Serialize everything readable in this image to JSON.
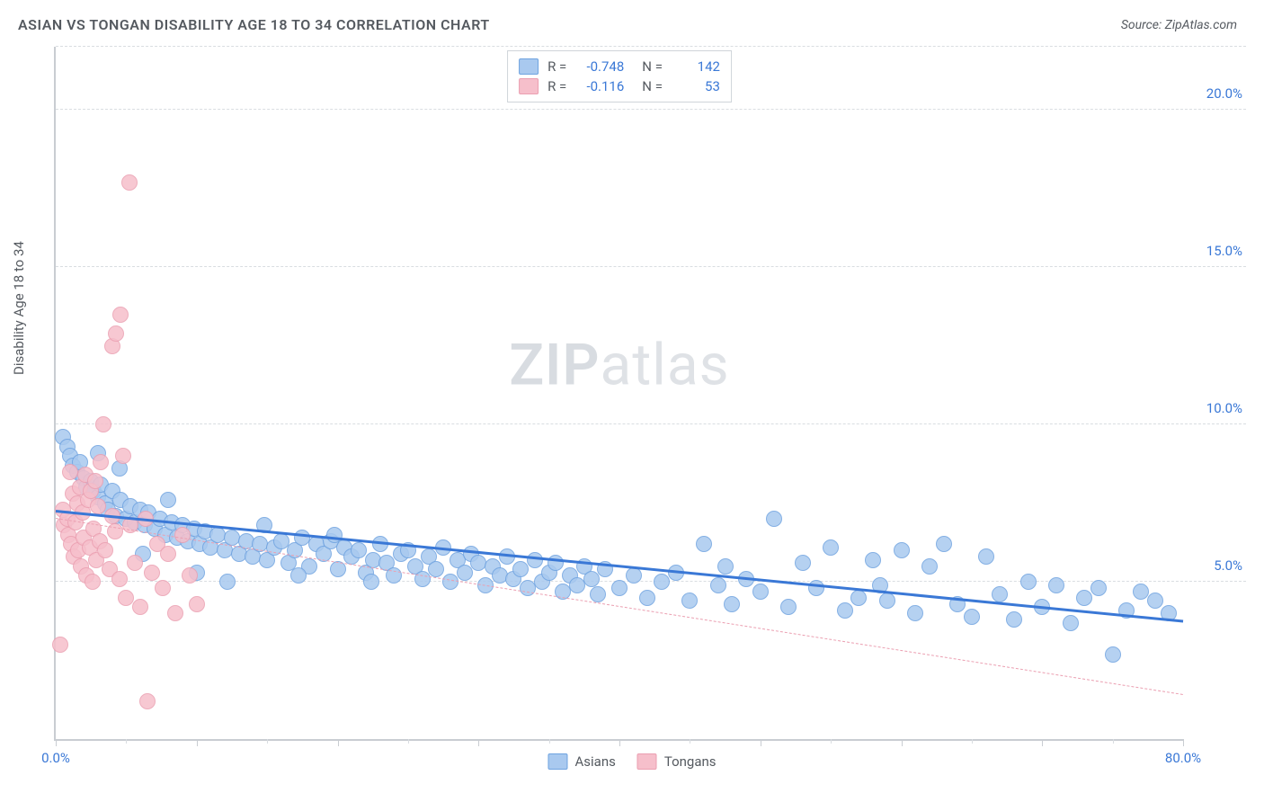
{
  "title": "ASIAN VS TONGAN DISABILITY AGE 18 TO 34 CORRELATION CHART",
  "source": "Source: ZipAtlas.com",
  "y_axis_label": "Disability Age 18 to 34",
  "watermark": {
    "bold": "ZIP",
    "rest": "atlas"
  },
  "chart": {
    "type": "scatter",
    "background_color": "#ffffff",
    "grid_color": "#d9dde1",
    "axis_color": "#c9cdd2",
    "xlim": [
      0,
      80
    ],
    "ylim": [
      0,
      22
    ],
    "y_gridlines": [
      5,
      10,
      15,
      20
    ],
    "y_tick_labels": [
      "5.0%",
      "10.0%",
      "15.0%",
      "20.0%"
    ],
    "y_tick_color": "#3a78d6",
    "x_ticks_major": [
      0,
      10,
      20,
      30,
      40,
      50,
      60,
      70,
      80
    ],
    "x_ticks_minor": [
      5,
      15,
      25,
      35,
      45,
      55,
      65,
      75
    ],
    "x_labels": [
      {
        "x": 0,
        "text": "0.0%",
        "color": "#3a78d6"
      },
      {
        "x": 80,
        "text": "80.0%",
        "color": "#3a78d6"
      }
    ],
    "point_radius": 9,
    "point_opacity_fill": 0.35,
    "series": [
      {
        "name": "Asians",
        "color_fill": "#a9c9ef",
        "color_stroke": "#6fa3e0",
        "R": "-0.748",
        "N": "142",
        "stat_color": "#3a78d6",
        "trend": {
          "x1": 0,
          "y1": 7.2,
          "x2": 80,
          "y2": 3.7,
          "style": "solid",
          "color": "#3a78d6",
          "extend_dash": false
        },
        "points": [
          [
            0.5,
            9.6
          ],
          [
            0.8,
            9.3
          ],
          [
            1.0,
            9.0
          ],
          [
            1.2,
            8.7
          ],
          [
            1.5,
            8.5
          ],
          [
            1.7,
            8.8
          ],
          [
            2.0,
            8.3
          ],
          [
            2.2,
            8.0
          ],
          [
            2.5,
            8.2
          ],
          [
            2.7,
            7.9
          ],
          [
            3.0,
            7.7
          ],
          [
            3.2,
            8.1
          ],
          [
            3.5,
            7.5
          ],
          [
            3.7,
            7.3
          ],
          [
            4.0,
            7.9
          ],
          [
            4.3,
            7.1
          ],
          [
            4.6,
            7.6
          ],
          [
            5.0,
            7.0
          ],
          [
            5.3,
            7.4
          ],
          [
            5.6,
            6.9
          ],
          [
            6.0,
            7.3
          ],
          [
            6.3,
            6.8
          ],
          [
            6.6,
            7.2
          ],
          [
            7.0,
            6.7
          ],
          [
            7.4,
            7.0
          ],
          [
            7.8,
            6.5
          ],
          [
            8.2,
            6.9
          ],
          [
            8.6,
            6.4
          ],
          [
            9.0,
            6.8
          ],
          [
            9.4,
            6.3
          ],
          [
            9.8,
            6.7
          ],
          [
            10.2,
            6.2
          ],
          [
            10.6,
            6.6
          ],
          [
            11.0,
            6.1
          ],
          [
            11.5,
            6.5
          ],
          [
            12.0,
            6.0
          ],
          [
            12.5,
            6.4
          ],
          [
            13.0,
            5.9
          ],
          [
            13.5,
            6.3
          ],
          [
            14.0,
            5.8
          ],
          [
            14.5,
            6.2
          ],
          [
            15.0,
            5.7
          ],
          [
            15.5,
            6.1
          ],
          [
            16.0,
            6.3
          ],
          [
            16.5,
            5.6
          ],
          [
            17.0,
            6.0
          ],
          [
            17.5,
            6.4
          ],
          [
            18.0,
            5.5
          ],
          [
            18.5,
            6.2
          ],
          [
            19.0,
            5.9
          ],
          [
            19.5,
            6.3
          ],
          [
            20.0,
            5.4
          ],
          [
            20.5,
            6.1
          ],
          [
            21.0,
            5.8
          ],
          [
            21.5,
            6.0
          ],
          [
            22.0,
            5.3
          ],
          [
            22.5,
            5.7
          ],
          [
            23.0,
            6.2
          ],
          [
            23.5,
            5.6
          ],
          [
            24.0,
            5.2
          ],
          [
            24.5,
            5.9
          ],
          [
            25.0,
            6.0
          ],
          [
            25.5,
            5.5
          ],
          [
            26.0,
            5.1
          ],
          [
            26.5,
            5.8
          ],
          [
            27.0,
            5.4
          ],
          [
            27.5,
            6.1
          ],
          [
            28.0,
            5.0
          ],
          [
            28.5,
            5.7
          ],
          [
            29.0,
            5.3
          ],
          [
            29.5,
            5.9
          ],
          [
            30.0,
            5.6
          ],
          [
            30.5,
            4.9
          ],
          [
            31.0,
            5.5
          ],
          [
            31.5,
            5.2
          ],
          [
            32.0,
            5.8
          ],
          [
            32.5,
            5.1
          ],
          [
            33.0,
            5.4
          ],
          [
            33.5,
            4.8
          ],
          [
            34.0,
            5.7
          ],
          [
            34.5,
            5.0
          ],
          [
            35.0,
            5.3
          ],
          [
            35.5,
            5.6
          ],
          [
            36.0,
            4.7
          ],
          [
            36.5,
            5.2
          ],
          [
            37.0,
            4.9
          ],
          [
            37.5,
            5.5
          ],
          [
            38.0,
            5.1
          ],
          [
            38.5,
            4.6
          ],
          [
            39.0,
            5.4
          ],
          [
            40.0,
            4.8
          ],
          [
            41.0,
            5.2
          ],
          [
            42.0,
            4.5
          ],
          [
            43.0,
            5.0
          ],
          [
            44.0,
            5.3
          ],
          [
            45.0,
            4.4
          ],
          [
            46.0,
            6.2
          ],
          [
            47.0,
            4.9
          ],
          [
            48.0,
            4.3
          ],
          [
            49.0,
            5.1
          ],
          [
            50.0,
            4.7
          ],
          [
            51.0,
            7.0
          ],
          [
            52.0,
            4.2
          ],
          [
            53.0,
            5.6
          ],
          [
            54.0,
            4.8
          ],
          [
            55.0,
            6.1
          ],
          [
            56.0,
            4.1
          ],
          [
            57.0,
            4.5
          ],
          [
            58.0,
            5.7
          ],
          [
            59.0,
            4.4
          ],
          [
            60.0,
            6.0
          ],
          [
            61.0,
            4.0
          ],
          [
            62.0,
            5.5
          ],
          [
            63.0,
            6.2
          ],
          [
            64.0,
            4.3
          ],
          [
            65.0,
            3.9
          ],
          [
            66.0,
            5.8
          ],
          [
            67.0,
            4.6
          ],
          [
            68.0,
            3.8
          ],
          [
            69.0,
            5.0
          ],
          [
            70.0,
            4.2
          ],
          [
            71.0,
            4.9
          ],
          [
            72.0,
            3.7
          ],
          [
            73.0,
            4.5
          ],
          [
            74.0,
            4.8
          ],
          [
            75.0,
            2.7
          ],
          [
            76.0,
            4.1
          ],
          [
            77.0,
            4.7
          ],
          [
            78.0,
            4.4
          ],
          [
            79.0,
            4.0
          ],
          [
            3.0,
            9.1
          ],
          [
            4.5,
            8.6
          ],
          [
            6.2,
            5.9
          ],
          [
            8.0,
            7.6
          ],
          [
            10.0,
            5.3
          ],
          [
            12.2,
            5.0
          ],
          [
            14.8,
            6.8
          ],
          [
            17.2,
            5.2
          ],
          [
            19.8,
            6.5
          ],
          [
            22.4,
            5.0
          ],
          [
            47.5,
            5.5
          ],
          [
            58.5,
            4.9
          ]
        ]
      },
      {
        "name": "Tongans",
        "color_fill": "#f6bfcb",
        "color_stroke": "#eb9fb1",
        "R": "-0.116",
        "N": "53",
        "stat_color": "#3a78d6",
        "trend": {
          "x1": 0,
          "y1": 7.0,
          "x2": 80,
          "y2": 1.4,
          "style": "dashed",
          "color": "#eb9fb1",
          "extend_dash": true
        },
        "points": [
          [
            0.3,
            3.0
          ],
          [
            0.5,
            7.3
          ],
          [
            0.6,
            6.8
          ],
          [
            0.8,
            7.0
          ],
          [
            0.9,
            6.5
          ],
          [
            1.0,
            8.5
          ],
          [
            1.1,
            6.2
          ],
          [
            1.2,
            7.8
          ],
          [
            1.3,
            5.8
          ],
          [
            1.4,
            6.9
          ],
          [
            1.5,
            7.5
          ],
          [
            1.6,
            6.0
          ],
          [
            1.7,
            8.0
          ],
          [
            1.8,
            5.5
          ],
          [
            1.9,
            7.2
          ],
          [
            2.0,
            6.4
          ],
          [
            2.1,
            8.4
          ],
          [
            2.2,
            5.2
          ],
          [
            2.3,
            7.6
          ],
          [
            2.4,
            6.1
          ],
          [
            2.5,
            7.9
          ],
          [
            2.6,
            5.0
          ],
          [
            2.7,
            6.7
          ],
          [
            2.8,
            8.2
          ],
          [
            2.9,
            5.7
          ],
          [
            3.0,
            7.4
          ],
          [
            3.1,
            6.3
          ],
          [
            3.2,
            8.8
          ],
          [
            3.5,
            6.0
          ],
          [
            3.8,
            5.4
          ],
          [
            4.0,
            7.1
          ],
          [
            4.2,
            6.6
          ],
          [
            4.5,
            5.1
          ],
          [
            4.8,
            9.0
          ],
          [
            5.0,
            4.5
          ],
          [
            5.3,
            6.8
          ],
          [
            5.6,
            5.6
          ],
          [
            6.0,
            4.2
          ],
          [
            6.4,
            7.0
          ],
          [
            6.8,
            5.3
          ],
          [
            7.2,
            6.2
          ],
          [
            7.6,
            4.8
          ],
          [
            8.0,
            5.9
          ],
          [
            8.5,
            4.0
          ],
          [
            9.0,
            6.5
          ],
          [
            9.5,
            5.2
          ],
          [
            10.0,
            4.3
          ],
          [
            3.4,
            10.0
          ],
          [
            4.0,
            12.5
          ],
          [
            4.3,
            12.9
          ],
          [
            4.6,
            13.5
          ],
          [
            5.2,
            17.7
          ],
          [
            6.5,
            1.2
          ]
        ]
      }
    ],
    "legend_top_labels": {
      "R": "R =",
      "N": "N ="
    },
    "legend_bottom": [
      {
        "label": "Asians",
        "fill": "#a9c9ef",
        "stroke": "#6fa3e0"
      },
      {
        "label": "Tongans",
        "fill": "#f6bfcb",
        "stroke": "#eb9fb1"
      }
    ]
  }
}
